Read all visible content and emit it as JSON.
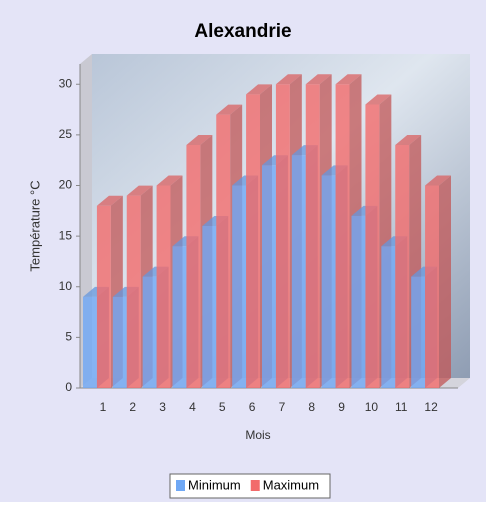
{
  "chart_data": {
    "type": "bar3d",
    "title": "Alexandrie",
    "x_label": "Mois",
    "y_label": "Température °C",
    "categories": [
      "1",
      "2",
      "3",
      "4",
      "5",
      "6",
      "7",
      "8",
      "9",
      "10",
      "11",
      "12"
    ],
    "series": [
      {
        "name": "Minimum",
        "color": "#6fa8f5",
        "values": [
          9,
          9,
          11,
          14,
          16,
          20,
          22,
          23,
          21,
          17,
          14,
          11
        ]
      },
      {
        "name": "Maximum",
        "color": "#f26b6b",
        "values": [
          18,
          19,
          20,
          24,
          27,
          29,
          30,
          30,
          30,
          28,
          24,
          20
        ]
      }
    ],
    "ylim": [
      0,
      32
    ],
    "yticks": [
      0,
      5,
      10,
      15,
      20,
      25,
      30
    ],
    "legend": "bottom"
  }
}
